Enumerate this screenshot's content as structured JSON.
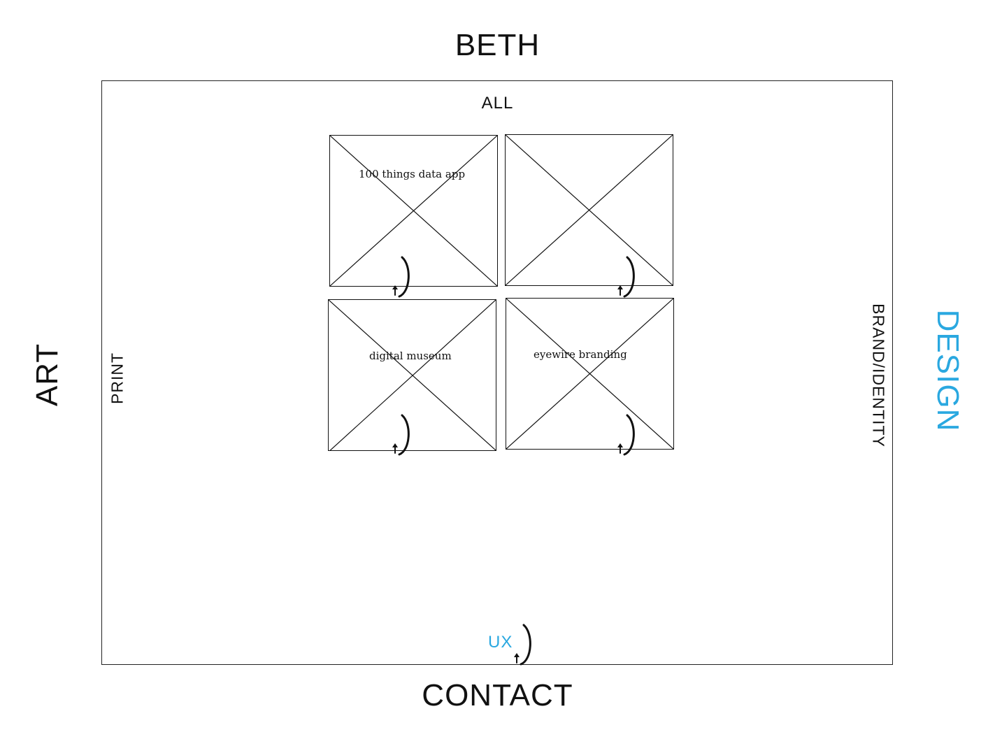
{
  "nav": {
    "top": "BETH",
    "bottom": "CONTACT",
    "left": "ART",
    "right": "DESIGN"
  },
  "filters": {
    "all": "ALL",
    "print": "PRINT",
    "brand": "BRAND/IDENTITY",
    "ux": "UX"
  },
  "tiles": [
    {
      "label": "100 things data app"
    },
    {
      "label": ""
    },
    {
      "label": "digital museum"
    },
    {
      "label": "eyewire branding"
    }
  ],
  "colors": {
    "accent": "#2aa8e0",
    "ink": "#111111"
  },
  "icons": {
    "tile_placeholder": "image-placeholder-icon",
    "cursor": "click-cursor-icon"
  }
}
